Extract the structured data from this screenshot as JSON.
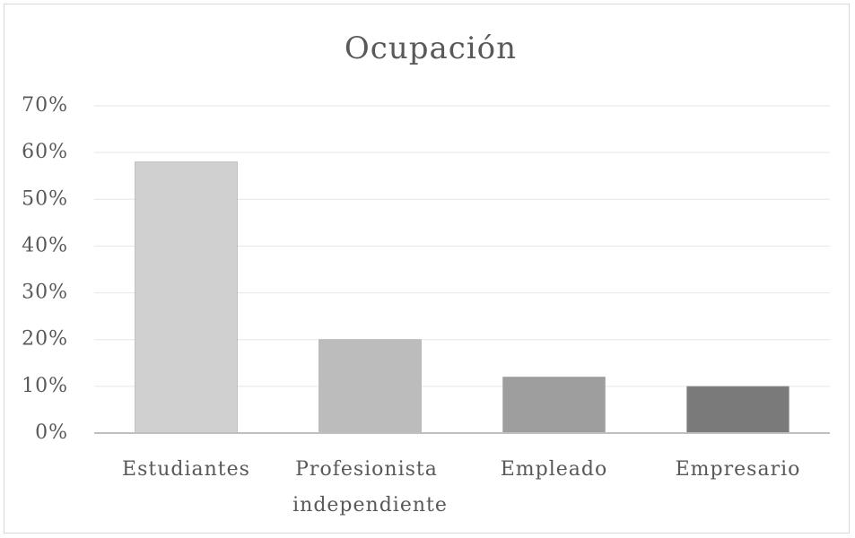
{
  "chart_data": {
    "type": "bar",
    "title": "Ocupación",
    "categories": [
      "Estudiantes",
      "Profesionista independiente",
      "Empleado",
      "Empresario"
    ],
    "values": [
      58,
      20,
      12,
      10
    ],
    "colors": [
      "#d0d0d0",
      "#bcbcbc",
      "#9e9e9e",
      "#7a7a7a"
    ],
    "ylim": [
      0,
      70
    ],
    "yticks": [
      {
        "value": 0,
        "label": "0%"
      },
      {
        "value": 10,
        "label": "10%"
      },
      {
        "value": 20,
        "label": "20%"
      },
      {
        "value": 30,
        "label": "30%"
      },
      {
        "value": 40,
        "label": "40%"
      },
      {
        "value": 50,
        "label": "50%"
      },
      {
        "value": 60,
        "label": "60%"
      },
      {
        "value": 70,
        "label": "70%"
      }
    ],
    "grid": true
  }
}
